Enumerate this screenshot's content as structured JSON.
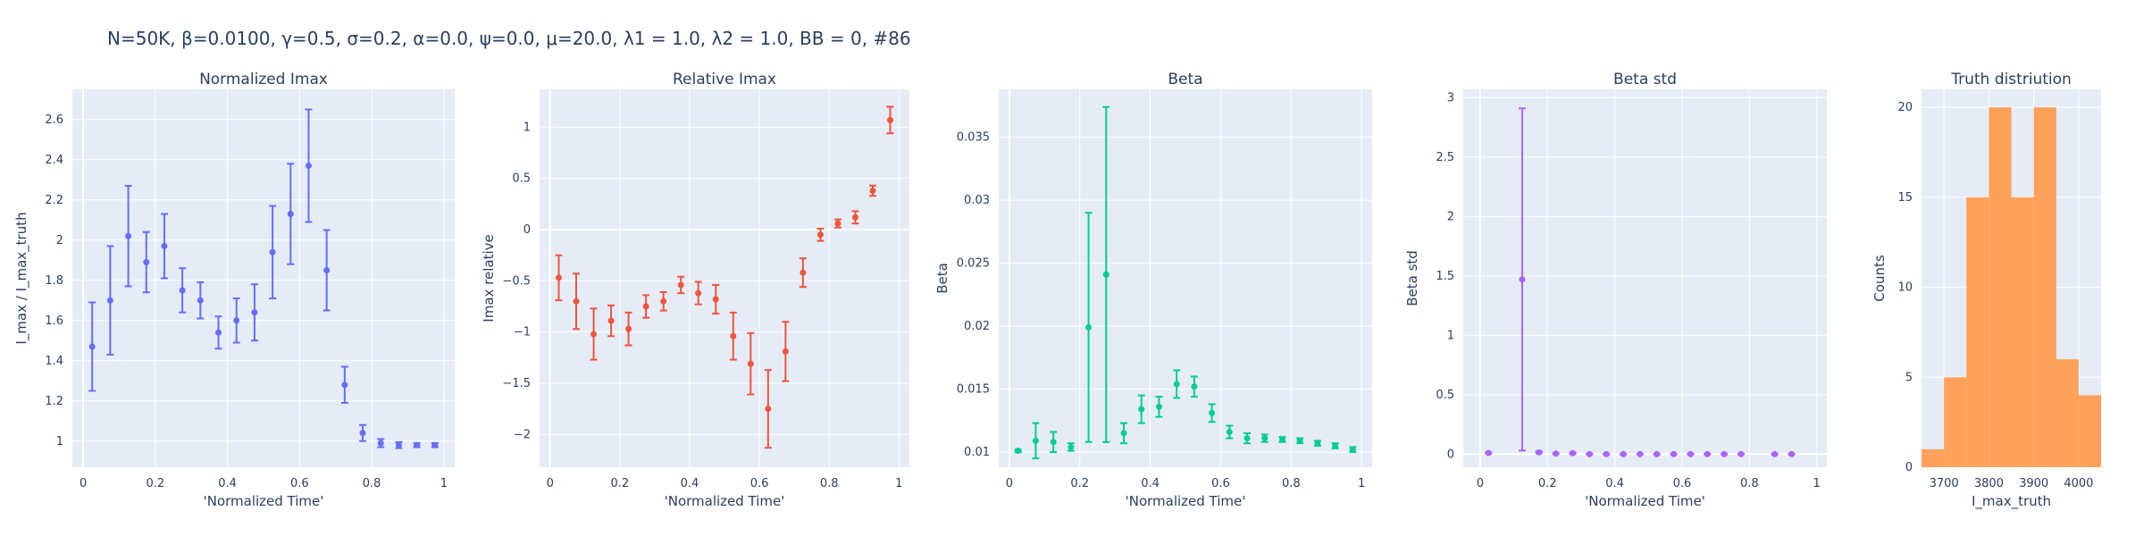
{
  "figure": {
    "title": "N=50K, β=0.0100, γ=0.5, σ=0.2,  α=0.0, ψ=0.0, μ=20.0, λ1 = 1.0, λ2 = 1.0, BB = 0, #86"
  },
  "chart_data": [
    {
      "type": "scatter",
      "title": "Normalized Imax",
      "xlabel": "'Normalized Time'",
      "ylabel": "I_max / I_max_truth",
      "color": "#636efa",
      "xlim": [
        -0.03,
        1.03
      ],
      "ylim": [
        0.87,
        2.75
      ],
      "xticks": [
        0,
        0.2,
        0.4,
        0.6,
        0.8,
        1
      ],
      "xtick_labels": [
        "0",
        "0.2",
        "0.4",
        "0.6",
        "0.8",
        "1"
      ],
      "yticks": [
        1,
        1.2,
        1.4,
        1.6,
        1.8,
        2,
        2.2,
        2.4,
        2.6
      ],
      "ytick_labels": [
        "1",
        "1.2",
        "1.4",
        "1.6",
        "1.8",
        "2",
        "2.2",
        "2.4",
        "2.6"
      ],
      "x": [
        0.025,
        0.075,
        0.125,
        0.175,
        0.225,
        0.275,
        0.325,
        0.375,
        0.425,
        0.475,
        0.525,
        0.575,
        0.625,
        0.675,
        0.725,
        0.775,
        0.825,
        0.875,
        0.925,
        0.975
      ],
      "y": [
        1.47,
        1.7,
        2.02,
        1.89,
        1.97,
        1.75,
        1.7,
        1.54,
        1.6,
        1.64,
        1.94,
        2.13,
        2.37,
        1.85,
        1.28,
        1.04,
        0.99,
        0.98,
        0.98,
        0.98
      ],
      "error": [
        0.22,
        0.27,
        0.25,
        0.15,
        0.16,
        0.11,
        0.09,
        0.08,
        0.11,
        0.14,
        0.23,
        0.25,
        0.28,
        0.2,
        0.09,
        0.04,
        0.02,
        0.015,
        0.01,
        0.01
      ]
    },
    {
      "type": "scatter",
      "title": "Relative Imax",
      "xlabel": "'Normalized Time'",
      "ylabel": "Imax relative",
      "color": "#ef553b",
      "xlim": [
        -0.03,
        1.03
      ],
      "ylim": [
        -2.32,
        1.37
      ],
      "xticks": [
        0,
        0.2,
        0.4,
        0.6,
        0.8,
        1
      ],
      "xtick_labels": [
        "0",
        "0.2",
        "0.4",
        "0.6",
        "0.8",
        "1"
      ],
      "yticks": [
        -2,
        -1.5,
        -1,
        -0.5,
        0,
        0.5,
        1
      ],
      "ytick_labels": [
        "−2",
        "−1.5",
        "−1",
        "−0.5",
        "0",
        "0.5",
        "1"
      ],
      "x": [
        0.025,
        0.075,
        0.125,
        0.175,
        0.225,
        0.275,
        0.325,
        0.375,
        0.425,
        0.475,
        0.525,
        0.575,
        0.625,
        0.675,
        0.725,
        0.775,
        0.825,
        0.875,
        0.925,
        0.975
      ],
      "y": [
        -0.47,
        -0.7,
        -1.02,
        -0.89,
        -0.97,
        -0.75,
        -0.7,
        -0.54,
        -0.62,
        -0.68,
        -1.04,
        -1.31,
        -1.75,
        -1.19,
        -0.42,
        -0.05,
        0.06,
        0.12,
        0.38,
        1.07
      ],
      "error": [
        0.22,
        0.27,
        0.25,
        0.15,
        0.16,
        0.11,
        0.09,
        0.08,
        0.11,
        0.14,
        0.23,
        0.3,
        0.38,
        0.29,
        0.14,
        0.06,
        0.04,
        0.06,
        0.05,
        0.13
      ]
    },
    {
      "type": "scatter",
      "title": "Beta",
      "xlabel": "'Normalized Time'",
      "ylabel": "Beta",
      "color": "#00cc96",
      "xlim": [
        -0.03,
        1.03
      ],
      "ylim": [
        0.0088,
        0.0388
      ],
      "xticks": [
        0,
        0.2,
        0.4,
        0.6,
        0.8,
        1
      ],
      "xtick_labels": [
        "0",
        "0.2",
        "0.4",
        "0.6",
        "0.8",
        "1"
      ],
      "yticks": [
        0.01,
        0.015,
        0.02,
        0.025,
        0.03,
        0.035
      ],
      "ytick_labels": [
        "0.01",
        "0.015",
        "0.02",
        "0.025",
        "0.03",
        "0.035"
      ],
      "x": [
        0.025,
        0.075,
        0.125,
        0.175,
        0.225,
        0.275,
        0.325,
        0.375,
        0.425,
        0.475,
        0.525,
        0.575,
        0.625,
        0.675,
        0.725,
        0.775,
        0.825,
        0.875,
        0.925,
        0.975
      ],
      "y": [
        0.0101,
        0.0109,
        0.0108,
        0.0104,
        0.0199,
        0.0241,
        0.0115,
        0.0134,
        0.0136,
        0.0154,
        0.0152,
        0.0131,
        0.0116,
        0.0111,
        0.0111,
        0.011,
        0.0109,
        0.0107,
        0.0105,
        0.0102
      ],
      "error": [
        0.0001,
        0.0014,
        0.0008,
        0.0003,
        0.0091,
        0.0133,
        0.0008,
        0.0011,
        0.0008,
        0.0011,
        0.0008,
        0.0007,
        0.0005,
        0.0004,
        0.0003,
        0.0002,
        0.0002,
        0.0002,
        0.0002,
        0.0002
      ]
    },
    {
      "type": "scatter",
      "title": "Beta std",
      "xlabel": "'Normalized Time'",
      "ylabel": "Beta std",
      "color": "#ab63fa",
      "xlim": [
        -0.05,
        1.03
      ],
      "ylim": [
        -0.11,
        3.07
      ],
      "xticks": [
        0,
        0.2,
        0.4,
        0.6,
        0.8,
        1
      ],
      "xtick_labels": [
        "0",
        "0.2",
        "0.4",
        "0.6",
        "0.8",
        "1"
      ],
      "yticks": [
        0,
        0.5,
        1,
        1.5,
        2,
        2.5,
        3
      ],
      "ytick_labels": [
        "0",
        "0.5",
        "1",
        "1.5",
        "2",
        "2.5",
        "3"
      ],
      "x": [
        0.025,
        0.125,
        0.175,
        0.225,
        0.275,
        0.325,
        0.375,
        0.425,
        0.475,
        0.525,
        0.575,
        0.625,
        0.675,
        0.725,
        0.775,
        0.875,
        0.925
      ],
      "y": [
        0.01,
        1.47,
        0.015,
        0.005,
        0.008,
        0.0,
        0.0,
        0.0,
        0.0,
        0.0,
        0.0,
        0.0,
        0.0,
        0.0,
        0.0,
        0.0,
        0.0
      ],
      "error": [
        0.005,
        1.44,
        0.008,
        0.004,
        0.005,
        0.002,
        0.002,
        0.002,
        0.002,
        0.002,
        0.002,
        0.002,
        0.002,
        0.002,
        0.002,
        0.002,
        0.002
      ]
    },
    {
      "type": "bar",
      "title": "Truth distriution",
      "xlabel": "I_max_truth",
      "ylabel": "Counts",
      "color": "#ffa15a",
      "xlim": [
        3650,
        4050
      ],
      "ylim": [
        0,
        21
      ],
      "xticks": [
        3700,
        3800,
        3900,
        4000
      ],
      "xtick_labels": [
        "3700",
        "3800",
        "3900",
        "4000"
      ],
      "yticks": [
        0,
        5,
        10,
        15,
        20
      ],
      "ytick_labels": [
        "0",
        "5",
        "10",
        "15",
        "20"
      ],
      "bin_edges": [
        3650,
        3700,
        3750,
        3800,
        3850,
        3900,
        3950,
        4000,
        4050
      ],
      "values": [
        1,
        5,
        15,
        20,
        15,
        20,
        6,
        4
      ]
    }
  ]
}
